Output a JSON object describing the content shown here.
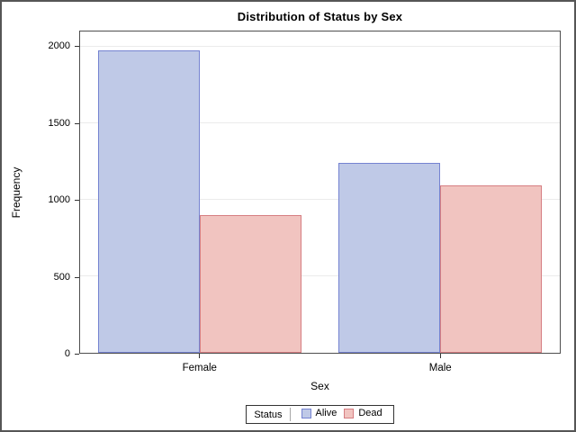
{
  "chart_data": {
    "type": "bar",
    "title": "Distribution of Status by Sex",
    "xlabel": "Sex",
    "ylabel": "Frequency",
    "categories": [
      "Female",
      "Male"
    ],
    "series": [
      {
        "name": "Alive",
        "values": [
          1975,
          1243
        ],
        "fill": "#BFC9E7",
        "stroke": "#7583D1"
      },
      {
        "name": "Dead",
        "values": [
          898,
          1093
        ],
        "fill": "#F1C4C0",
        "stroke": "#D67E82"
      }
    ],
    "yticks": [
      0,
      500,
      1000,
      1500,
      2000
    ],
    "ylim": [
      0,
      2100
    ],
    "grid": true,
    "legend": {
      "title": "Status",
      "position": "bottom"
    },
    "colors": {
      "gridline": "#ebebeb",
      "frame": "#4e4e4e",
      "text": "#000000"
    }
  }
}
